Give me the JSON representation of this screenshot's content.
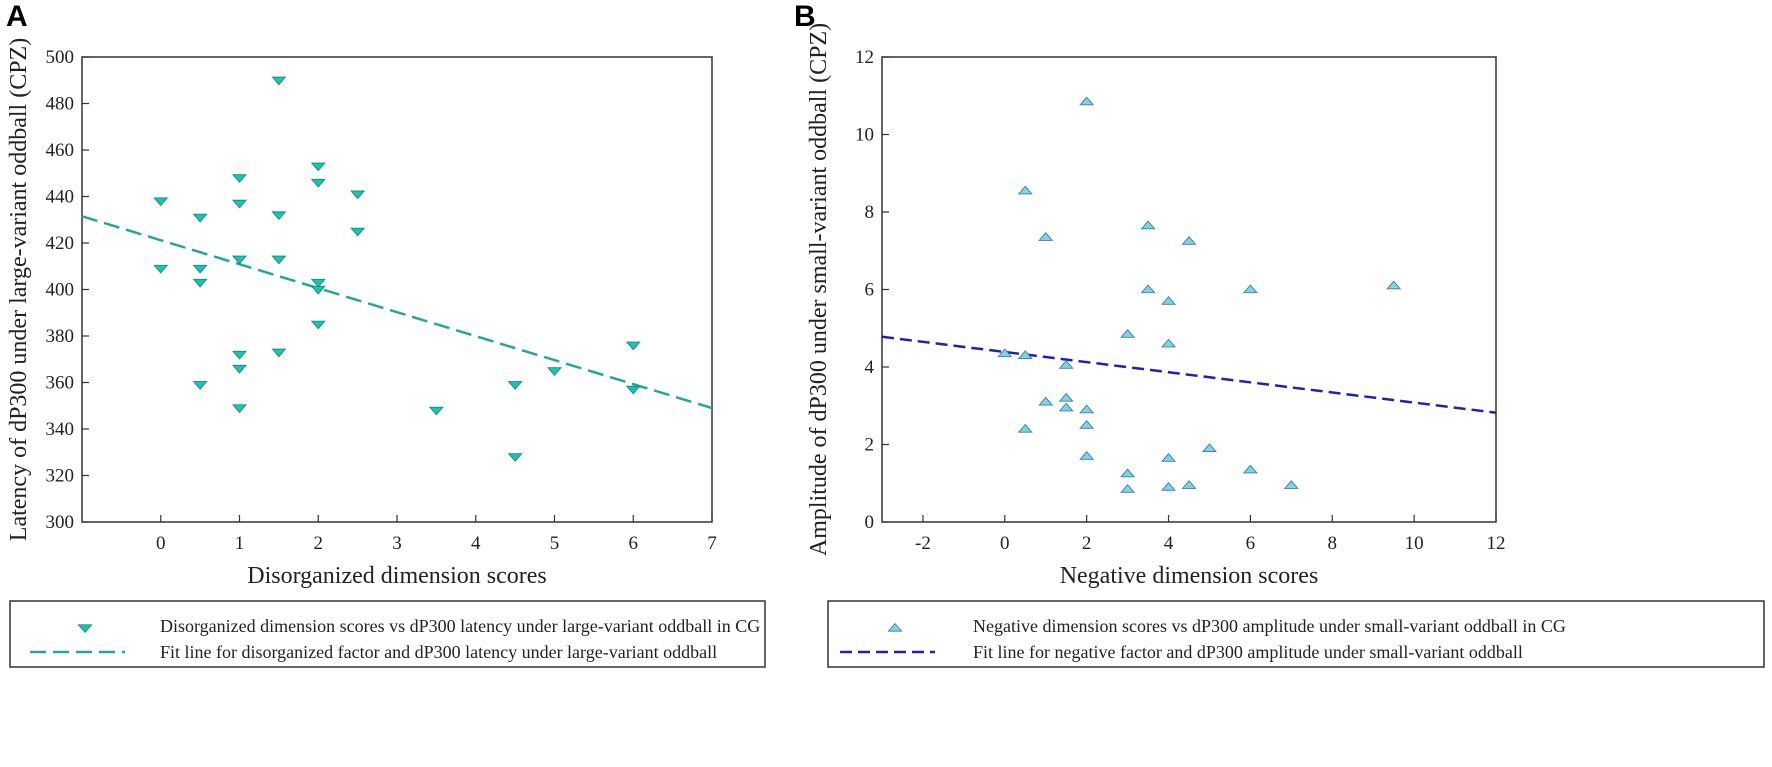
{
  "chart_data": [
    {
      "panel": "A",
      "type": "scatter",
      "title": "",
      "xlabel": "Disorganized dimension scores",
      "ylabel": "Latency of dP300 under large-variant oddball (CPZ)",
      "xlim": [
        -1,
        7
      ],
      "ylim": [
        300,
        500
      ],
      "xticks": [
        0,
        1,
        2,
        3,
        4,
        5,
        6,
        7
      ],
      "yticks": [
        300,
        320,
        340,
        360,
        380,
        400,
        420,
        440,
        460,
        480,
        500
      ],
      "grid": false,
      "marker": "triangle-down",
      "marker_color": "#1fc2b0",
      "line_color": "#26a69a",
      "points": [
        [
          0,
          438
        ],
        [
          0,
          409
        ],
        [
          0.5,
          431
        ],
        [
          0.5,
          409
        ],
        [
          0.5,
          403
        ],
        [
          0.5,
          359
        ],
        [
          1,
          448
        ],
        [
          1,
          437
        ],
        [
          1,
          413
        ],
        [
          1,
          372
        ],
        [
          1,
          366
        ],
        [
          1,
          349
        ],
        [
          1.5,
          490
        ],
        [
          1.5,
          432
        ],
        [
          1.5,
          413
        ],
        [
          1.5,
          373
        ],
        [
          2,
          453
        ],
        [
          2,
          446
        ],
        [
          2,
          403
        ],
        [
          2,
          400
        ],
        [
          2,
          385
        ],
        [
          2.5,
          441
        ],
        [
          2.5,
          425
        ],
        [
          3.5,
          348
        ],
        [
          4.5,
          359
        ],
        [
          4.5,
          328
        ],
        [
          5,
          365
        ],
        [
          6,
          376
        ],
        [
          6,
          357
        ]
      ],
      "fit_line": {
        "x": [
          -1,
          7
        ],
        "y": [
          431.5,
          349
        ]
      },
      "legend": [
        {
          "kind": "marker",
          "label": "Disorganized dimension scores vs dP300 latency under large-variant oddball in CG"
        },
        {
          "kind": "line",
          "label": "Fit line for disorganized factor and dP300 latency under large-variant oddball"
        }
      ]
    },
    {
      "panel": "B",
      "type": "scatter",
      "title": "",
      "xlabel": "Negative dimension scores",
      "ylabel": "Amplitude of dP300 under small-variant oddball (CPZ)",
      "xlim": [
        -3,
        12
      ],
      "ylim": [
        0,
        12
      ],
      "xticks": [
        -2,
        0,
        2,
        4,
        6,
        8,
        10,
        12
      ],
      "yticks": [
        0,
        2,
        4,
        6,
        8,
        10,
        12
      ],
      "grid": false,
      "marker": "triangle-up",
      "marker_color": "#7ed3e8",
      "line_color": "#2222aa",
      "points": [
        [
          0,
          4.35
        ],
        [
          0.5,
          8.55
        ],
        [
          0.5,
          4.3
        ],
        [
          0.5,
          2.4
        ],
        [
          1,
          7.35
        ],
        [
          1,
          3.1
        ],
        [
          1.5,
          4.05
        ],
        [
          1.5,
          3.2
        ],
        [
          1.5,
          2.95
        ],
        [
          2,
          10.85
        ],
        [
          2,
          2.9
        ],
        [
          2,
          2.5
        ],
        [
          2,
          1.7
        ],
        [
          3,
          4.85
        ],
        [
          3,
          1.25
        ],
        [
          3,
          0.85
        ],
        [
          3.5,
          7.65
        ],
        [
          3.5,
          6.0
        ],
        [
          4,
          5.7
        ],
        [
          4,
          4.6
        ],
        [
          4,
          1.65
        ],
        [
          4,
          0.9
        ],
        [
          4.5,
          7.25
        ],
        [
          4.5,
          0.95
        ],
        [
          5,
          1.9
        ],
        [
          6,
          6.0
        ],
        [
          6,
          1.35
        ],
        [
          7,
          0.95
        ],
        [
          9.5,
          6.1
        ]
      ],
      "fit_line": {
        "x": [
          -3,
          12
        ],
        "y": [
          4.78,
          2.82
        ]
      },
      "legend": [
        {
          "kind": "marker",
          "label": "Negative dimension scores vs dP300 amplitude under small-variant oddball  in CG"
        },
        {
          "kind": "line",
          "label": "Fit line for negative factor and dP300 amplitude under small-variant oddball"
        }
      ]
    }
  ]
}
